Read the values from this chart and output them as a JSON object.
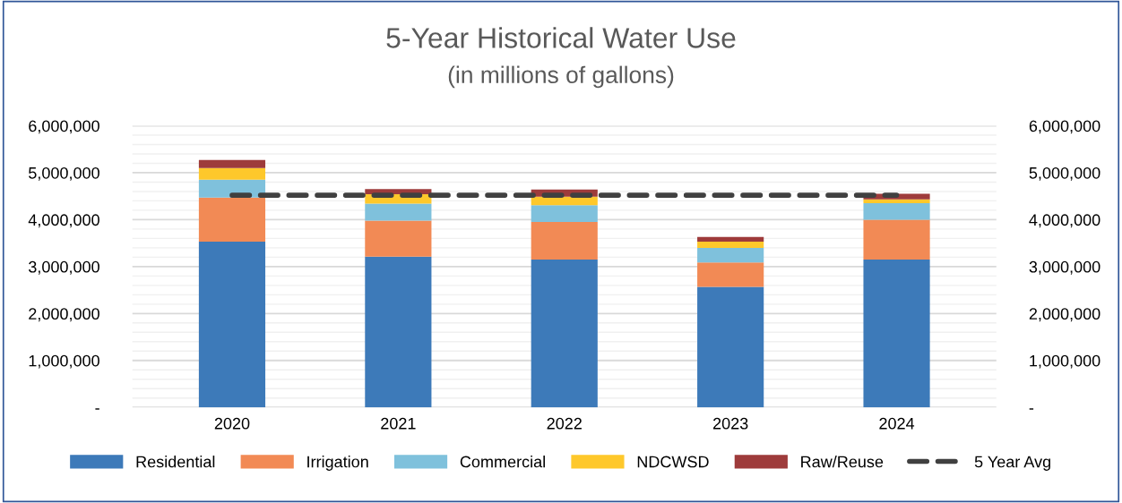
{
  "chart_data": {
    "type": "bar",
    "stacked": true,
    "title": "5-Year Historical Water Use",
    "subtitle": "(in millions of gallons)",
    "categories": [
      "2020",
      "2021",
      "2022",
      "2023",
      "2024"
    ],
    "series": [
      {
        "name": "Residential",
        "color": "#3d7ab9",
        "values": [
          3530000,
          3210000,
          3150000,
          2570000,
          3150000
        ]
      },
      {
        "name": "Irrigation",
        "color": "#f28a55",
        "values": [
          940000,
          770000,
          800000,
          520000,
          850000
        ]
      },
      {
        "name": "Commercial",
        "color": "#7fc1dc",
        "values": [
          380000,
          360000,
          360000,
          310000,
          350000
        ]
      },
      {
        "name": "NDCWSD",
        "color": "#fec82b",
        "values": [
          250000,
          200000,
          180000,
          130000,
          80000
        ]
      },
      {
        "name": "Raw/Reuse",
        "color": "#9e3b3b",
        "values": [
          170000,
          110000,
          150000,
          100000,
          120000
        ]
      },
      {
        "name": "5 Year Avg",
        "type": "line",
        "color": "#404040",
        "line_style": "dashed",
        "marker": "none",
        "values": [
          4520000,
          4520000,
          4520000,
          4520000,
          4520000
        ]
      }
    ],
    "ylim": [
      0,
      6000000
    ],
    "yticks": [
      {
        "value": 0,
        "label": "-"
      },
      {
        "value": 200000,
        "label": null
      },
      {
        "value": 400000,
        "label": null
      },
      {
        "value": 600000,
        "label": null
      },
      {
        "value": 800000,
        "label": null
      },
      {
        "value": 1000000,
        "label": "1,000,000"
      },
      {
        "value": 1200000,
        "label": null
      },
      {
        "value": 1400000,
        "label": null
      },
      {
        "value": 1600000,
        "label": null
      },
      {
        "value": 1800000,
        "label": null
      },
      {
        "value": 2000000,
        "label": "2,000,000"
      },
      {
        "value": 2200000,
        "label": null
      },
      {
        "value": 2400000,
        "label": null
      },
      {
        "value": 2600000,
        "label": null
      },
      {
        "value": 2800000,
        "label": null
      },
      {
        "value": 3000000,
        "label": "3,000,000"
      },
      {
        "value": 3200000,
        "label": null
      },
      {
        "value": 3400000,
        "label": null
      },
      {
        "value": 3600000,
        "label": null
      },
      {
        "value": 3800000,
        "label": null
      },
      {
        "value": 4000000,
        "label": "4,000,000"
      },
      {
        "value": 4200000,
        "label": null
      },
      {
        "value": 4400000,
        "label": null
      },
      {
        "value": 4600000,
        "label": null
      },
      {
        "value": 4800000,
        "label": null
      },
      {
        "value": 5000000,
        "label": "5,000,000"
      },
      {
        "value": 5200000,
        "label": null
      },
      {
        "value": 5400000,
        "label": null
      },
      {
        "value": 5600000,
        "label": null
      },
      {
        "value": 5800000,
        "label": null
      },
      {
        "value": 6000000,
        "label": "6,000,000"
      }
    ],
    "y2lim": [
      0,
      6000000
    ],
    "y2ticks": [
      {
        "value": 0,
        "label": "-"
      },
      {
        "value": 1000000,
        "label": "1,000,000"
      },
      {
        "value": 2000000,
        "label": "2,000,000"
      },
      {
        "value": 3000000,
        "label": "3,000,000"
      },
      {
        "value": 4000000,
        "label": "4,000,000"
      },
      {
        "value": 5000000,
        "label": "5,000,000"
      },
      {
        "value": 6000000,
        "label": "6,000,000"
      }
    ],
    "grid": "y",
    "legend": "bottom"
  }
}
